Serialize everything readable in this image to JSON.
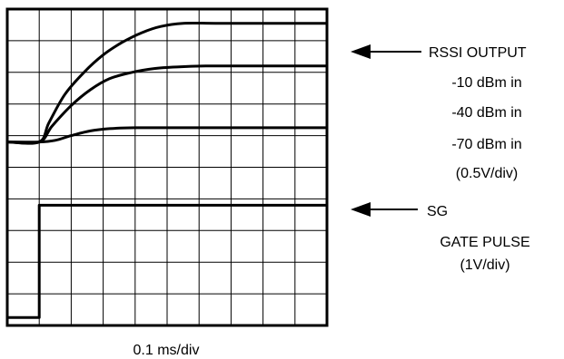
{
  "chart_data": {
    "type": "line",
    "title": "",
    "xlabel": "0.1 ms/div",
    "ylabel": "",
    "grid": true,
    "divisions": {
      "x": 10,
      "y": 10
    },
    "xlim": [
      0,
      10
    ],
    "ylim": [
      0,
      10
    ],
    "series": [
      {
        "name": "-10 dBm in",
        "x": [
          0,
          1,
          1.3,
          1.8,
          2.4,
          3.0,
          3.6,
          4.2,
          4.8,
          5.5,
          6.5,
          8,
          10
        ],
        "y": [
          5.8,
          5.8,
          6.4,
          7.3,
          8.0,
          8.55,
          8.95,
          9.25,
          9.45,
          9.55,
          9.55,
          9.55,
          9.55
        ]
      },
      {
        "name": "-40 dBm in",
        "x": [
          0,
          1,
          1.4,
          2.0,
          2.6,
          3.2,
          3.9,
          4.6,
          5.3,
          6.2,
          7.5,
          10
        ],
        "y": [
          5.8,
          5.8,
          6.3,
          6.95,
          7.45,
          7.8,
          8.0,
          8.12,
          8.17,
          8.2,
          8.2,
          8.2
        ]
      },
      {
        "name": "-70 dBm in",
        "x": [
          0,
          1,
          1.5,
          2.0,
          2.6,
          3.2,
          4.0,
          5.5,
          10
        ],
        "y": [
          5.8,
          5.8,
          5.85,
          6.0,
          6.15,
          6.22,
          6.25,
          6.25,
          6.25
        ]
      },
      {
        "name": "SG GATE PULSE",
        "x": [
          0,
          1,
          1,
          10
        ],
        "y": [
          0.25,
          0.25,
          3.8,
          3.8
        ]
      }
    ],
    "annotations": {
      "rssi": {
        "line1": "RSSI OUTPUT",
        "line2": "-10 dBm in",
        "line3": "-40 dBm in",
        "line4": "-70 dBm in",
        "line5": "(0.5V/div)"
      },
      "sg": {
        "line1": "SG",
        "line2": "GATE PULSE",
        "line3": "(1V/div)"
      }
    },
    "colors": {
      "trace": "#000000",
      "grid": "#000000",
      "background": "#ffffff"
    }
  }
}
